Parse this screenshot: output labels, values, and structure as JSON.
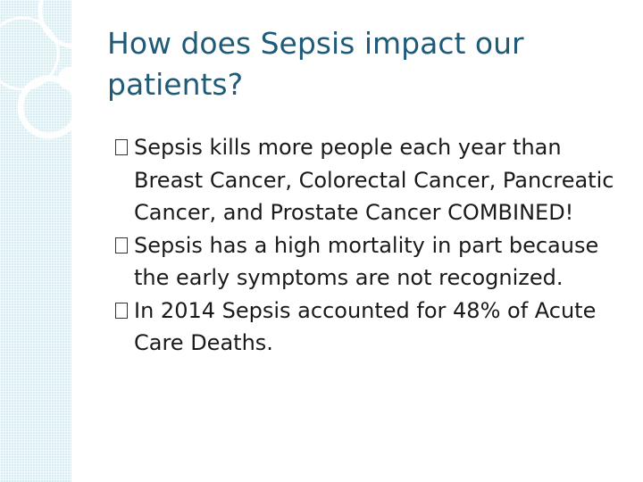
{
  "slide": {
    "title": "How does Sepsis impact our patients?",
    "bullets": [
      "Sepsis kills more people each year than Breast Cancer, Colorectal Cancer, Pancreatic Cancer, and Prostate Cancer COMBINED!",
      "Sepsis has a high mortality in part because the early symptoms are not recognized.",
      "In 2014 Sepsis accounted for 48% of Acute Care Deaths."
    ],
    "bullet_icon": "missing-glyph-box-icon"
  },
  "colors": {
    "title": "#1f5a78",
    "body_text": "#1a1a1a",
    "side_band": "#d9eef3",
    "decor_rings": "#ffffff"
  }
}
